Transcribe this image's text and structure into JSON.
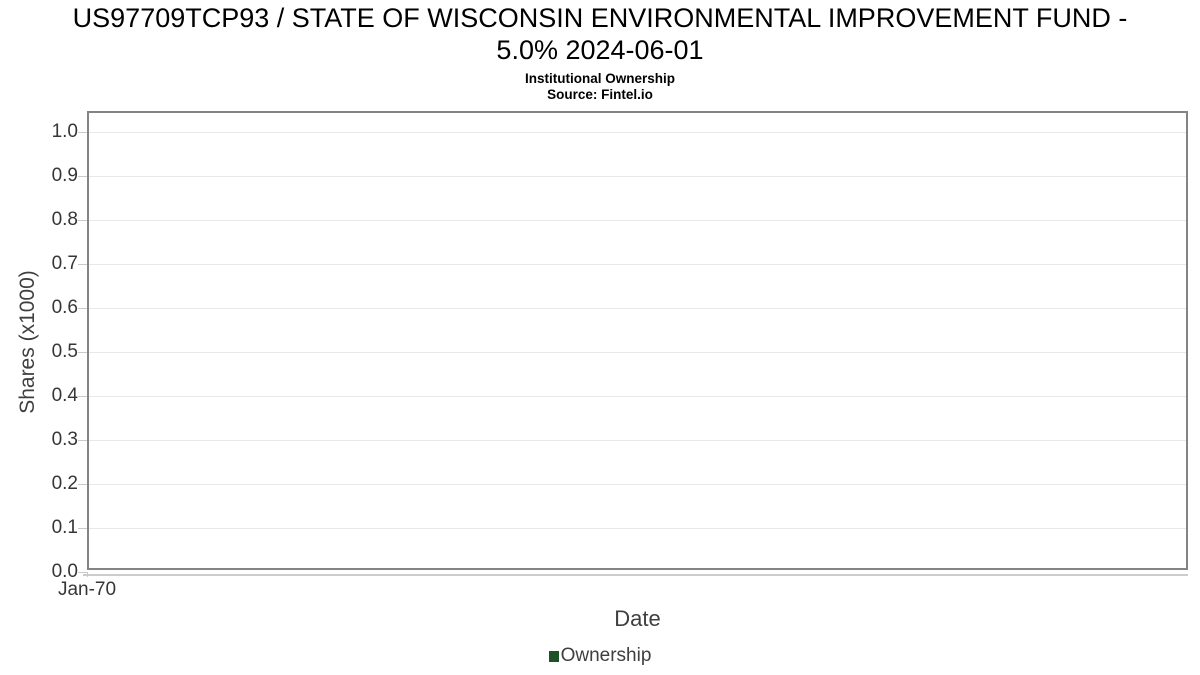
{
  "chart_data": {
    "type": "line",
    "title": "US97709TCP93 / STATE OF WISCONSIN ENVIRONMENTAL IMPROVEMENT FUND - 5.0% 2024-06-01",
    "title_lines": [
      "US97709TCP93 / STATE OF WISCONSIN ENVIRONMENTAL IMPROVEMENT FUND -",
      "5.0% 2024-06-01"
    ],
    "subtitle": "Institutional Ownership",
    "source": "Source: Fintel.io",
    "xlabel": "Date",
    "ylabel": "Shares (x1000)",
    "x_tick_labels": [
      "Jan-70"
    ],
    "y_tick_labels": [
      "0.0",
      "0.1",
      "0.2",
      "0.3",
      "0.4",
      "0.5",
      "0.6",
      "0.7",
      "0.8",
      "0.9",
      "1.0"
    ],
    "ylim": [
      0.0,
      1.05
    ],
    "grid": true,
    "legend_position": "bottom",
    "series": [
      {
        "name": "Ownership",
        "color": "#1d5128",
        "x": [],
        "values": []
      }
    ]
  },
  "colors": {
    "plot_border": "#848484",
    "gridline": "#e8e8e8",
    "tick": "#c9c9c9",
    "title_text": "#000000",
    "tick_text": "#363636",
    "axis_label_text": "#3f3f3f",
    "legend_marker": "#1d5128"
  }
}
